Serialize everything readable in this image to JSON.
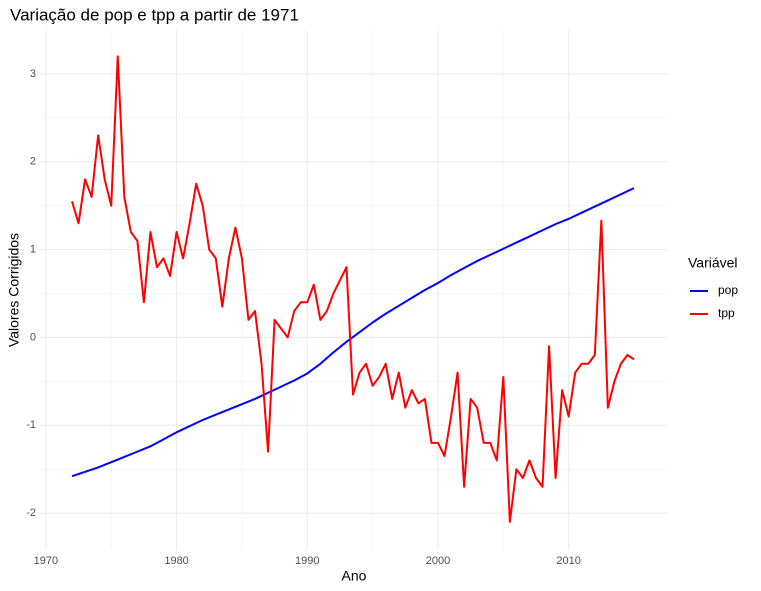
{
  "chart_data": {
    "type": "line",
    "title": "Variação de pop e tpp a partir de 1971",
    "x_label": "Ano",
    "y_label": "Valores Corrigidos",
    "legend_title": "Variável",
    "legend_position": "right",
    "grid": true,
    "xlim": [
      1969.55,
      2017.6
    ],
    "xticks": [
      1970,
      1980,
      1990,
      2000,
      2010
    ],
    "ylim": [
      -2.42,
      3.5
    ],
    "yticks": [
      -2,
      -1,
      0,
      1,
      2,
      3
    ],
    "series": [
      {
        "name": "pop",
        "color": "#0000ff",
        "x": [
          1972,
          1973,
          1974,
          1975,
          1976,
          1977,
          1978,
          1979,
          1980,
          1981,
          1982,
          1983,
          1984,
          1985,
          1986,
          1987,
          1988,
          1989,
          1990,
          1991,
          1992,
          1993,
          1994,
          1995,
          1996,
          1997,
          1998,
          1999,
          2000,
          2001,
          2002,
          2003,
          2004,
          2005,
          2006,
          2007,
          2008,
          2009,
          2010,
          2011,
          2012,
          2013,
          2014,
          2015
        ],
        "values": [
          -1.58,
          -1.53,
          -1.48,
          -1.42,
          -1.36,
          -1.3,
          -1.24,
          -1.16,
          -1.08,
          -1.01,
          -0.94,
          -0.88,
          -0.82,
          -0.76,
          -0.7,
          -0.63,
          -0.56,
          -0.49,
          -0.41,
          -0.3,
          -0.17,
          -0.05,
          0.06,
          0.17,
          0.27,
          0.36,
          0.45,
          0.54,
          0.62,
          0.71,
          0.79,
          0.87,
          0.94,
          1.01,
          1.08,
          1.15,
          1.22,
          1.29,
          1.35,
          1.42,
          1.49,
          1.56,
          1.63,
          1.7
        ]
      },
      {
        "name": "tpp",
        "color": "#ff0000",
        "x": [
          1972,
          1972.5,
          1973,
          1973.5,
          1974,
          1974.5,
          1975,
          1975.5,
          1976,
          1976.5,
          1977,
          1977.5,
          1978,
          1978.5,
          1979,
          1979.5,
          1980,
          1980.5,
          1981,
          1981.5,
          1982,
          1982.5,
          1983,
          1983.5,
          1984,
          1984.5,
          1985,
          1985.5,
          1986,
          1986.5,
          1987,
          1987.5,
          1988,
          1988.5,
          1989,
          1989.5,
          1990,
          1990.5,
          1991,
          1991.5,
          1992,
          1992.5,
          1993,
          1993.5,
          1994,
          1994.5,
          1995,
          1995.5,
          1996,
          1996.5,
          1997,
          1997.5,
          1998,
          1998.5,
          1999,
          1999.5,
          2000,
          2000.5,
          2001,
          2001.5,
          2002,
          2002.5,
          2003,
          2003.5,
          2004,
          2004.5,
          2005,
          2005.5,
          2006,
          2006.5,
          2007,
          2007.5,
          2008,
          2008.5,
          2009,
          2009.5,
          2010,
          2010.5,
          2011,
          2011.5,
          2012,
          2012.5,
          2013,
          2013.5,
          2014,
          2014.5,
          2015
        ],
        "values": [
          1.55,
          1.3,
          1.8,
          1.6,
          2.3,
          1.8,
          1.5,
          3.2,
          1.6,
          1.2,
          1.1,
          0.4,
          1.2,
          0.8,
          0.9,
          0.7,
          1.2,
          0.9,
          1.3,
          1.75,
          1.5,
          1.0,
          0.9,
          0.35,
          0.9,
          1.25,
          0.9,
          0.2,
          0.3,
          -0.3,
          -1.3,
          0.2,
          0.1,
          0.0,
          0.3,
          0.4,
          0.4,
          0.6,
          0.2,
          0.3,
          0.5,
          0.65,
          0.8,
          -0.65,
          -0.4,
          -0.3,
          -0.55,
          -0.45,
          -0.3,
          -0.7,
          -0.4,
          -0.8,
          -0.6,
          -0.75,
          -0.7,
          -1.2,
          -1.2,
          -1.35,
          -0.9,
          -0.4,
          -1.7,
          -0.7,
          -0.8,
          -1.2,
          -1.2,
          -1.4,
          -0.45,
          -2.1,
          -1.5,
          -1.6,
          -1.4,
          -1.6,
          -1.7,
          -0.1,
          -1.6,
          -0.6,
          -0.9,
          -0.4,
          -0.3,
          -0.3,
          -0.2,
          1.33,
          -0.8,
          -0.5,
          -0.3,
          -0.2,
          -0.25
        ]
      }
    ]
  }
}
